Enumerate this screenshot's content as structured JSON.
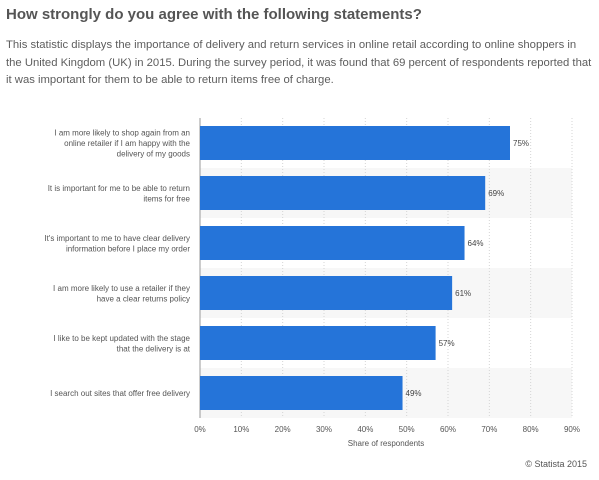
{
  "header": {
    "title": "How strongly do you agree with the following statements?",
    "description": "This statistic displays the importance of delivery and return services in online retail according to online shoppers in the United Kingdom (UK) in 2015. During the survey period, it was found that 69 percent of respondents reported that it was important for them to be able to return items free of charge."
  },
  "footer": {
    "credit": "© Statista 2015"
  },
  "colors": {
    "bar": "#2574d9",
    "band": "#f7f7f7",
    "grid": "#d4d4d4",
    "axis": "#9a9a9a"
  },
  "chart_data": {
    "type": "bar",
    "orientation": "horizontal",
    "categories": [
      [
        "I am more likely to shop again from an",
        "online retailer if I am happy with the",
        "delivery of my goods"
      ],
      [
        "It is important for me to be able to return",
        "items for free"
      ],
      [
        "It's important to me to have clear delivery",
        "information before I place my order"
      ],
      [
        "I am more likely to use a retailer if they",
        "have a clear returns policy"
      ],
      [
        "I like to be kept updated with the stage",
        "that the delivery is at"
      ],
      [
        "I search out sites that offer free delivery"
      ]
    ],
    "values": [
      75,
      69,
      64,
      61,
      57,
      49
    ],
    "value_labels": [
      "75%",
      "69%",
      "64%",
      "61%",
      "57%",
      "49%"
    ],
    "xlim": [
      0,
      90
    ],
    "xticks": [
      0,
      10,
      20,
      30,
      40,
      50,
      60,
      70,
      80,
      90
    ],
    "xtick_labels": [
      "0%",
      "10%",
      "20%",
      "30%",
      "40%",
      "50%",
      "60%",
      "70%",
      "80%",
      "90%"
    ],
    "xlabel": "Share of respondents",
    "ylabel": "",
    "grid": true,
    "legend": "none"
  }
}
